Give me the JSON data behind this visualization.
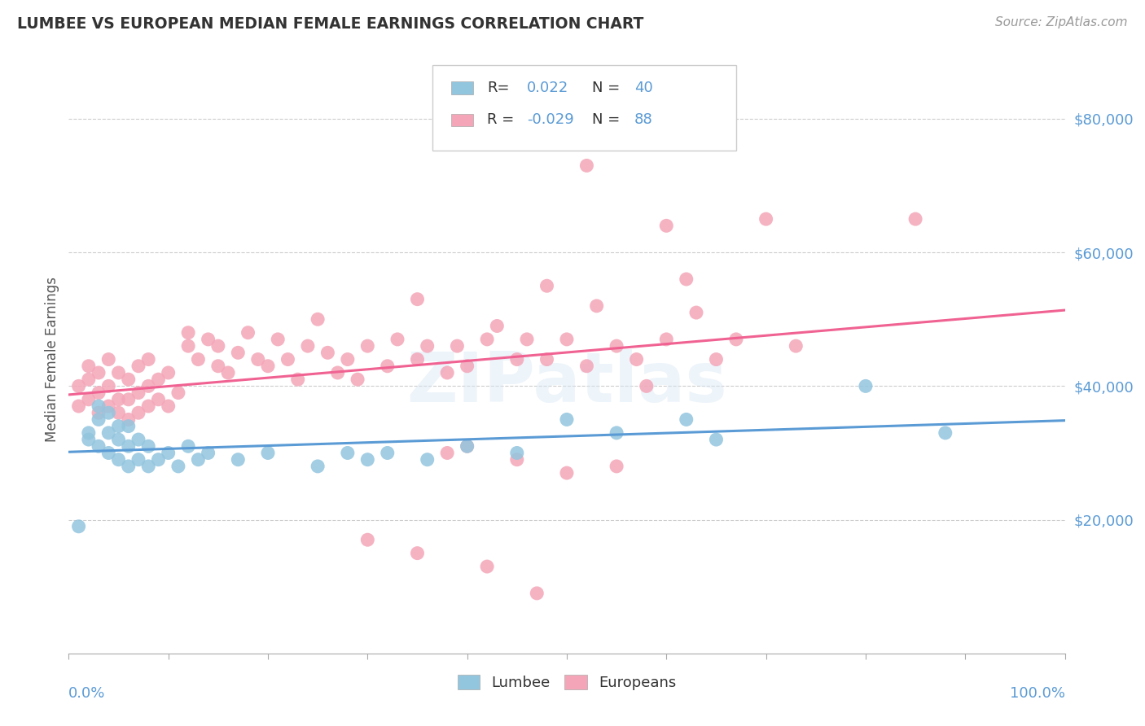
{
  "title": "LUMBEE VS EUROPEAN MEDIAN FEMALE EARNINGS CORRELATION CHART",
  "source": "Source: ZipAtlas.com",
  "ylabel": "Median Female Earnings",
  "y_ticks": [
    20000,
    40000,
    60000,
    80000
  ],
  "y_tick_labels": [
    "$20,000",
    "$40,000",
    "$60,000",
    "$80,000"
  ],
  "xlim": [
    0.0,
    1.0
  ],
  "ylim": [
    0,
    88000
  ],
  "lumbee_color": "#92c5de",
  "european_color": "#f4a6b8",
  "lumbee_line_color": "#5b9bd5",
  "european_line_color": "#f06292",
  "background_color": "#ffffff",
  "grid_color": "#cccccc",
  "lumbee_x": [
    0.01,
    0.02,
    0.02,
    0.03,
    0.03,
    0.03,
    0.04,
    0.04,
    0.04,
    0.05,
    0.05,
    0.05,
    0.06,
    0.06,
    0.06,
    0.07,
    0.07,
    0.08,
    0.08,
    0.09,
    0.1,
    0.11,
    0.12,
    0.13,
    0.14,
    0.17,
    0.2,
    0.25,
    0.28,
    0.3,
    0.32,
    0.36,
    0.4,
    0.45,
    0.5,
    0.55,
    0.62,
    0.65,
    0.8,
    0.88
  ],
  "lumbee_y": [
    19000,
    32000,
    33000,
    31000,
    35000,
    37000,
    30000,
    33000,
    36000,
    29000,
    32000,
    34000,
    28000,
    31000,
    34000,
    29000,
    32000,
    28000,
    31000,
    29000,
    30000,
    28000,
    31000,
    29000,
    30000,
    29000,
    30000,
    28000,
    30000,
    29000,
    30000,
    29000,
    31000,
    30000,
    35000,
    33000,
    35000,
    32000,
    40000,
    33000
  ],
  "european_x": [
    0.01,
    0.01,
    0.02,
    0.02,
    0.02,
    0.03,
    0.03,
    0.03,
    0.04,
    0.04,
    0.04,
    0.05,
    0.05,
    0.05,
    0.06,
    0.06,
    0.06,
    0.07,
    0.07,
    0.07,
    0.08,
    0.08,
    0.08,
    0.09,
    0.09,
    0.1,
    0.1,
    0.11,
    0.12,
    0.12,
    0.13,
    0.14,
    0.15,
    0.15,
    0.16,
    0.17,
    0.18,
    0.19,
    0.2,
    0.21,
    0.22,
    0.23,
    0.24,
    0.25,
    0.26,
    0.27,
    0.28,
    0.29,
    0.3,
    0.32,
    0.33,
    0.35,
    0.36,
    0.38,
    0.39,
    0.4,
    0.42,
    0.43,
    0.45,
    0.46,
    0.48,
    0.5,
    0.52,
    0.55,
    0.57,
    0.6,
    0.63,
    0.65,
    0.67,
    0.7,
    0.73,
    0.38,
    0.45,
    0.55,
    0.4,
    0.5,
    0.3,
    0.35,
    0.42,
    0.47,
    0.35,
    0.48,
    0.53,
    0.62,
    0.6,
    0.85,
    0.52,
    0.58
  ],
  "european_y": [
    37000,
    40000,
    38000,
    41000,
    43000,
    36000,
    39000,
    42000,
    37000,
    40000,
    44000,
    36000,
    38000,
    42000,
    35000,
    38000,
    41000,
    36000,
    39000,
    43000,
    37000,
    40000,
    44000,
    38000,
    41000,
    37000,
    42000,
    39000,
    46000,
    48000,
    44000,
    47000,
    43000,
    46000,
    42000,
    45000,
    48000,
    44000,
    43000,
    47000,
    44000,
    41000,
    46000,
    50000,
    45000,
    42000,
    44000,
    41000,
    46000,
    43000,
    47000,
    44000,
    46000,
    42000,
    46000,
    43000,
    47000,
    49000,
    44000,
    47000,
    44000,
    47000,
    43000,
    46000,
    44000,
    47000,
    51000,
    44000,
    47000,
    65000,
    46000,
    30000,
    29000,
    28000,
    31000,
    27000,
    17000,
    15000,
    13000,
    9000,
    53000,
    55000,
    52000,
    56000,
    64000,
    65000,
    73000,
    40000
  ]
}
